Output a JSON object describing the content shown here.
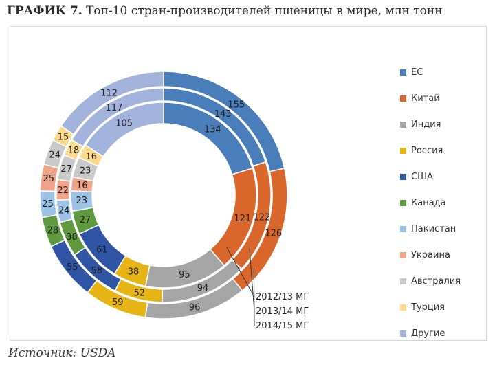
{
  "title_prefix": "ГРАФИК 7.",
  "title_text": "Топ-10 стран-производителей пшеницы в мире, млн тонн",
  "source": "Источник: USDA",
  "chart_data": {
    "type": "donut",
    "title": "ГРАФИК 7. Топ-10 стран-производителей пшеницы в мире, млн тонн",
    "categories": [
      "ЕС",
      "Китай",
      "Индия",
      "Россия",
      "США",
      "Канада",
      "Пакистан",
      "Украина",
      "Австралия",
      "Турция",
      "Другие"
    ],
    "colors": [
      "#4a7ebb",
      "#d9662b",
      "#a5a5a5",
      "#e7b416",
      "#2f55a4",
      "#5f9a3e",
      "#9cc3e6",
      "#f0a58a",
      "#c9c9c9",
      "#ffd98a",
      "#a3b4dc"
    ],
    "series": [
      {
        "name": "2012/13 МГ",
        "values": [
          134,
          121,
          95,
          38,
          61,
          27,
          23,
          16,
          23,
          16,
          105
        ]
      },
      {
        "name": "2013/14 МГ",
        "values": [
          143,
          122,
          94,
          52,
          58,
          38,
          24,
          22,
          27,
          18,
          117
        ]
      },
      {
        "name": "2014/15 МГ",
        "values": [
          155,
          126,
          96,
          59,
          55,
          28,
          25,
          25,
          24,
          15,
          112
        ]
      }
    ],
    "ring_order": "inner to outer",
    "legend_position": "right"
  }
}
